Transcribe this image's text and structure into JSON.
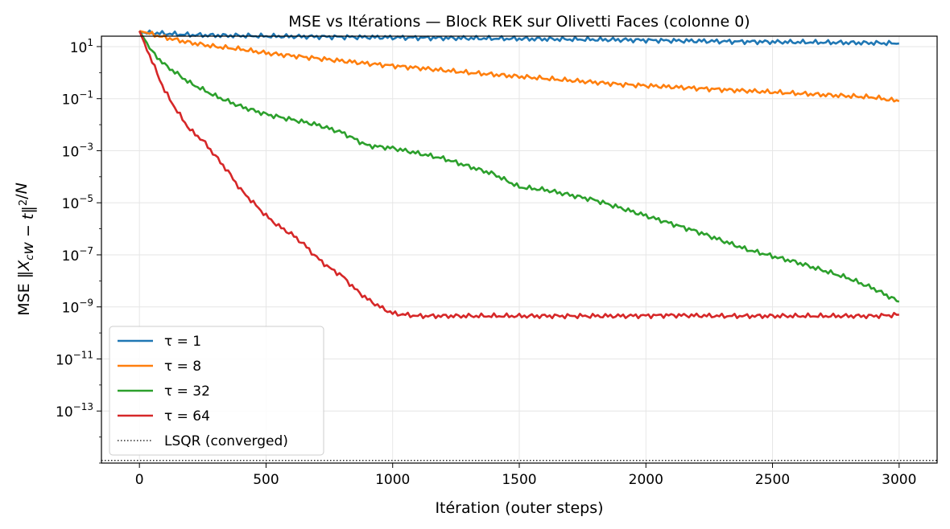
{
  "chart_data": {
    "type": "line",
    "title": "MSE vs Itérations — Block REK sur Olivetti Faces (colonne 0)",
    "xlabel": "Itération (outer steps)",
    "ylabel": "MSE  ‖X_c w − t‖²/N",
    "xlim": [
      -150,
      3150
    ],
    "ylim_log10": [
      -15.0,
      1.4
    ],
    "y_scale": "log",
    "x_ticks": [
      0,
      500,
      1000,
      1500,
      2000,
      2500,
      3000
    ],
    "y_tick_exponents": [
      1,
      -1,
      -3,
      -5,
      -7,
      -9,
      -11,
      -13
    ],
    "grid": true,
    "legend_position": "lower-left",
    "series": [
      {
        "name": "τ = 1",
        "color": "#1f77b4",
        "x": [
          0,
          100,
          200,
          300,
          400,
          500,
          700,
          900,
          1100,
          1300,
          1500,
          1700,
          1900,
          2100,
          2300,
          2500,
          2700,
          2900,
          3000
        ],
        "log10y": [
          1.55,
          1.5,
          1.45,
          1.43,
          1.42,
          1.4,
          1.38,
          1.36,
          1.34,
          1.32,
          1.3,
          1.28,
          1.26,
          1.23,
          1.2,
          1.18,
          1.16,
          1.14,
          1.12
        ]
      },
      {
        "name": "τ = 8",
        "color": "#ff7f0e",
        "x": [
          0,
          100,
          200,
          300,
          400,
          500,
          700,
          900,
          1100,
          1300,
          1500,
          1700,
          1900,
          2100,
          2300,
          2500,
          2700,
          2900,
          3000
        ],
        "log10y": [
          1.6,
          1.35,
          1.15,
          1.0,
          0.9,
          0.75,
          0.55,
          0.35,
          0.18,
          0.0,
          -0.15,
          -0.3,
          -0.45,
          -0.55,
          -0.65,
          -0.75,
          -0.85,
          -0.95,
          -1.1
        ]
      },
      {
        "name": "τ = 32",
        "color": "#2ca02c",
        "x": [
          0,
          50,
          100,
          200,
          300,
          400,
          500,
          600,
          700,
          800,
          900,
          1000,
          1200,
          1400,
          1500,
          1600,
          1800,
          2000,
          2200,
          2400,
          2600,
          2800,
          2900,
          3000
        ],
        "log10y": [
          1.6,
          0.8,
          0.3,
          -0.4,
          -0.9,
          -1.3,
          -1.6,
          -1.8,
          -2.0,
          -2.3,
          -2.8,
          -2.9,
          -3.3,
          -3.9,
          -4.4,
          -4.5,
          -4.9,
          -5.5,
          -6.1,
          -6.8,
          -7.3,
          -7.9,
          -8.3,
          -8.8
        ]
      },
      {
        "name": "τ = 64",
        "color": "#d62728",
        "x": [
          0,
          30,
          60,
          100,
          150,
          200,
          250,
          300,
          350,
          400,
          450,
          500,
          550,
          600,
          650,
          700,
          750,
          800,
          850,
          900,
          950,
          1000,
          1100,
          1300,
          1500,
          1700,
          1900,
          2100,
          2300,
          2500,
          2700,
          2900,
          3000
        ],
        "log10y": [
          1.6,
          0.9,
          0.2,
          -0.7,
          -1.5,
          -2.2,
          -2.6,
          -3.2,
          -3.8,
          -4.5,
          -5.0,
          -5.5,
          -5.9,
          -6.2,
          -6.6,
          -7.1,
          -7.5,
          -7.8,
          -8.3,
          -8.7,
          -9.0,
          -9.25,
          -9.35,
          -9.35,
          -9.35,
          -9.35,
          -9.35,
          -9.32,
          -9.35,
          -9.35,
          -9.35,
          -9.35,
          -9.3
        ]
      }
    ],
    "reference_line": {
      "name": "LSQR (converged)",
      "log10y": -14.9,
      "color": "#000000",
      "style": "dotted"
    }
  }
}
